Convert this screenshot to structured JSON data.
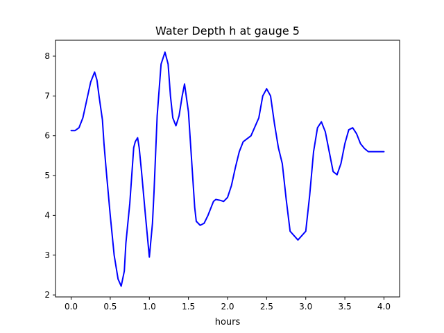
{
  "chart_data": {
    "type": "line",
    "title": "Water Depth h at gauge 5",
    "xlabel": "hours",
    "ylabel": "",
    "xlim": [
      -0.2,
      4.2
    ],
    "ylim": [
      1.95,
      8.4
    ],
    "xticks": [
      0.0,
      0.5,
      1.0,
      1.5,
      2.0,
      2.5,
      3.0,
      3.5,
      4.0
    ],
    "xtick_labels": [
      "0.0",
      "0.5",
      "1.0",
      "1.5",
      "2.0",
      "2.5",
      "3.0",
      "3.5",
      "4.0"
    ],
    "yticks": [
      2,
      3,
      4,
      5,
      6,
      7,
      8
    ],
    "ytick_labels": [
      "2",
      "3",
      "4",
      "5",
      "6",
      "7",
      "8"
    ],
    "grid": false,
    "series": [
      {
        "color": "#0000ff",
        "x": [
          0.0,
          0.05,
          0.1,
          0.15,
          0.2,
          0.25,
          0.3,
          0.33,
          0.36,
          0.4,
          0.42,
          0.45,
          0.5,
          0.55,
          0.6,
          0.64,
          0.68,
          0.7,
          0.75,
          0.8,
          0.82,
          0.85,
          0.87,
          0.9,
          0.95,
          1.0,
          1.04,
          1.06,
          1.1,
          1.15,
          1.2,
          1.24,
          1.27,
          1.3,
          1.34,
          1.38,
          1.42,
          1.45,
          1.5,
          1.55,
          1.58,
          1.6,
          1.65,
          1.7,
          1.75,
          1.8,
          1.82,
          1.85,
          1.9,
          1.95,
          2.0,
          2.05,
          2.1,
          2.15,
          2.2,
          2.3,
          2.4,
          2.45,
          2.5,
          2.55,
          2.6,
          2.65,
          2.7,
          2.75,
          2.8,
          2.9,
          3.0,
          3.05,
          3.1,
          3.15,
          3.2,
          3.25,
          3.3,
          3.35,
          3.4,
          3.45,
          3.5,
          3.55,
          3.6,
          3.65,
          3.7,
          3.75,
          3.8,
          3.85,
          3.9,
          3.95,
          4.0
        ],
        "y": [
          6.13,
          6.13,
          6.2,
          6.45,
          6.9,
          7.35,
          7.6,
          7.4,
          6.95,
          6.4,
          5.8,
          5.1,
          4.0,
          3.0,
          2.4,
          2.22,
          2.6,
          3.3,
          4.3,
          5.7,
          5.85,
          5.95,
          5.7,
          5.1,
          4.0,
          2.95,
          3.8,
          4.6,
          6.5,
          7.8,
          8.1,
          7.8,
          7.0,
          6.45,
          6.25,
          6.5,
          7.0,
          7.3,
          6.6,
          5.1,
          4.2,
          3.85,
          3.75,
          3.8,
          4.0,
          4.25,
          4.35,
          4.4,
          4.38,
          4.35,
          4.45,
          4.75,
          5.2,
          5.6,
          5.85,
          6.0,
          6.45,
          7.0,
          7.18,
          7.0,
          6.3,
          5.7,
          5.3,
          4.4,
          3.6,
          3.38,
          3.6,
          4.5,
          5.6,
          6.2,
          6.35,
          6.1,
          5.6,
          5.1,
          5.02,
          5.3,
          5.8,
          6.15,
          6.2,
          6.05,
          5.8,
          5.68,
          5.6,
          5.6,
          5.6,
          5.6,
          5.6
        ]
      }
    ]
  }
}
